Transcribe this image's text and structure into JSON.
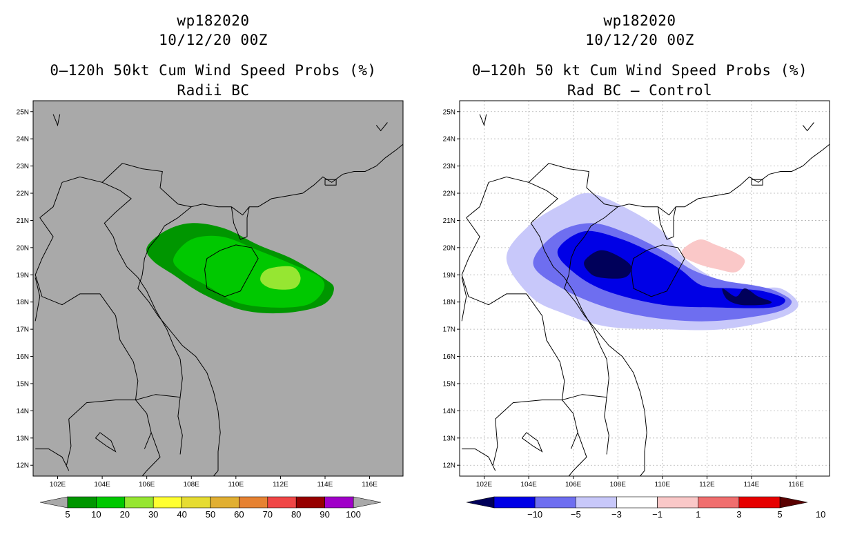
{
  "left_panel": {
    "storm_id": "wp182020",
    "datetime": "10/12/20 00Z",
    "product": "0–120h 50kt Cum Wind Speed Probs (%)",
    "subtitle": "Radii BC",
    "background_color": "#a9a9a9",
    "colorbar": {
      "labels": [
        "5",
        "10",
        "20",
        "30",
        "40",
        "50",
        "60",
        "70",
        "80",
        "90",
        "100"
      ],
      "colors": [
        "#009600",
        "#00c800",
        "#96e632",
        "#ffff32",
        "#e6dc32",
        "#e1af32",
        "#e68232",
        "#f04646",
        "#960000",
        "#a000c8"
      ]
    }
  },
  "right_panel": {
    "storm_id": "wp182020",
    "datetime": "10/12/20 00Z",
    "product": "0–120h 50 kt Cum Wind Speed Probs (%)",
    "subtitle": "Rad BC – Control",
    "background_color": "#ffffff",
    "colorbar": {
      "labels": [
        "−10",
        "−5",
        "−3",
        "−1",
        "1",
        "3",
        "5",
        "10"
      ],
      "colors": [
        "#00005a",
        "#0000e6",
        "#6e6ef0",
        "#c8c8fa",
        "#ffffff",
        "#fac8c8",
        "#f06e6e",
        "#e60000",
        "#5a0000"
      ]
    }
  },
  "lat_labels": [
    "25N",
    "24N",
    "23N",
    "22N",
    "21N",
    "20N",
    "19N",
    "18N",
    "17N",
    "16N",
    "15N",
    "14N",
    "13N",
    "12N"
  ],
  "lon_labels": [
    "102E",
    "104E",
    "106E",
    "108E",
    "110E",
    "112E",
    "114E",
    "116E"
  ],
  "chart_data": {
    "type": "contour_map",
    "lon_range": [
      100.9,
      117.5
    ],
    "lat_range": [
      11.6,
      25.4
    ],
    "left_probability_regions": [
      {
        "level": "5-10",
        "points": [
          [
            106.0,
            20.0
          ],
          [
            106.8,
            20.6
          ],
          [
            108.0,
            20.9
          ],
          [
            109.5,
            20.7
          ],
          [
            111.0,
            20.1
          ],
          [
            112.5,
            19.6
          ],
          [
            113.9,
            18.9
          ],
          [
            114.4,
            18.5
          ],
          [
            113.9,
            17.9
          ],
          [
            112.2,
            17.6
          ],
          [
            110.3,
            17.7
          ],
          [
            108.5,
            18.3
          ],
          [
            107.2,
            19.0
          ],
          [
            106.3,
            19.5
          ]
        ]
      },
      {
        "level": "10-20",
        "points": [
          [
            107.2,
            19.6
          ],
          [
            108.0,
            20.3
          ],
          [
            109.4,
            20.4
          ],
          [
            111.0,
            19.9
          ],
          [
            112.5,
            19.4
          ],
          [
            113.8,
            18.9
          ],
          [
            113.9,
            18.4
          ],
          [
            113.2,
            17.9
          ],
          [
            111.6,
            17.8
          ],
          [
            110.0,
            18.0
          ],
          [
            108.7,
            18.6
          ],
          [
            107.6,
            19.1
          ]
        ]
      },
      {
        "level": "20-30",
        "points": [
          [
            111.4,
            19.2
          ],
          [
            112.5,
            19.3
          ],
          [
            112.9,
            18.9
          ],
          [
            112.6,
            18.5
          ],
          [
            111.6,
            18.5
          ],
          [
            111.1,
            18.8
          ]
        ]
      }
    ],
    "right_difference_regions": [
      {
        "level": "-3 to -1",
        "points": [
          [
            103.0,
            19.6
          ],
          [
            104.0,
            20.8
          ],
          [
            105.5,
            21.6
          ],
          [
            106.7,
            22.0
          ],
          [
            108.5,
            21.4
          ],
          [
            110.0,
            20.6
          ],
          [
            111.0,
            19.6
          ],
          [
            112.5,
            18.8
          ],
          [
            114.0,
            18.5
          ],
          [
            115.3,
            18.5
          ],
          [
            116.1,
            17.9
          ],
          [
            115.2,
            17.4
          ],
          [
            112.7,
            17.0
          ],
          [
            110.0,
            17.0
          ],
          [
            107.5,
            17.1
          ],
          [
            105.5,
            17.6
          ],
          [
            104.1,
            18.2
          ]
        ]
      },
      {
        "level": "-5 to -3",
        "points": [
          [
            104.2,
            19.4
          ],
          [
            105.2,
            20.5
          ],
          [
            106.8,
            20.9
          ],
          [
            108.5,
            20.5
          ],
          [
            110.2,
            19.8
          ],
          [
            111.3,
            19.2
          ],
          [
            112.7,
            18.8
          ],
          [
            114.2,
            18.6
          ],
          [
            115.1,
            18.4
          ],
          [
            115.8,
            18.0
          ],
          [
            115.0,
            17.6
          ],
          [
            112.3,
            17.3
          ],
          [
            109.8,
            17.4
          ],
          [
            107.5,
            17.8
          ],
          [
            105.5,
            18.5
          ]
        ]
      },
      {
        "level": "-10 to -5",
        "points": [
          [
            105.3,
            19.9
          ],
          [
            106.5,
            20.6
          ],
          [
            108.2,
            20.3
          ],
          [
            109.8,
            19.7
          ],
          [
            110.8,
            19.2
          ],
          [
            111.8,
            18.6
          ],
          [
            113.2,
            18.5
          ],
          [
            114.5,
            18.4
          ],
          [
            115.5,
            18.1
          ],
          [
            114.9,
            17.8
          ],
          [
            112.5,
            17.8
          ],
          [
            110.0,
            17.9
          ],
          [
            107.5,
            18.4
          ],
          [
            106.0,
            19.1
          ]
        ]
      },
      {
        "level": "<-10",
        "points": [
          [
            106.5,
            19.5
          ],
          [
            107.2,
            19.9
          ],
          [
            108.0,
            19.7
          ],
          [
            108.6,
            19.3
          ],
          [
            108.3,
            18.9
          ],
          [
            107.2,
            18.9
          ],
          [
            106.7,
            19.1
          ]
        ]
      },
      {
        "level": "<-10",
        "points": [
          [
            112.7,
            18.5
          ],
          [
            113.3,
            18.2
          ],
          [
            113.7,
            18.5
          ],
          [
            114.3,
            18.2
          ],
          [
            114.9,
            18.0
          ],
          [
            114.5,
            17.9
          ],
          [
            113.5,
            17.9
          ],
          [
            112.9,
            18.1
          ]
        ]
      },
      {
        "level": "1 to 3",
        "points": [
          [
            111.0,
            20.0
          ],
          [
            111.7,
            20.3
          ],
          [
            112.4,
            20.1
          ],
          [
            113.3,
            19.8
          ],
          [
            113.7,
            19.5
          ],
          [
            113.3,
            19.1
          ],
          [
            112.5,
            19.2
          ],
          [
            111.6,
            19.4
          ],
          [
            110.9,
            19.7
          ]
        ]
      }
    ]
  }
}
